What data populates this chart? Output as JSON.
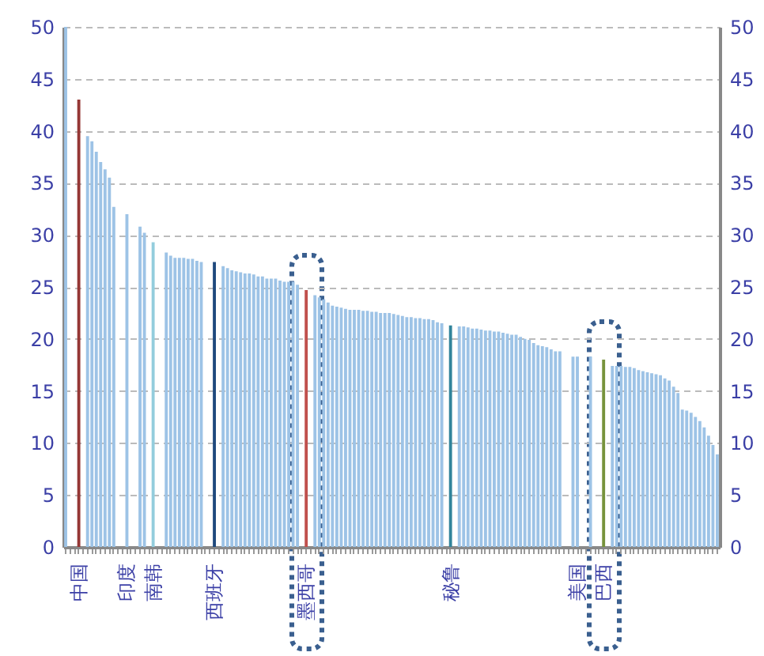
{
  "chart_data": {
    "type": "bar",
    "categories": [
      null,
      null,
      null,
      "中国",
      null,
      null,
      null,
      null,
      null,
      null,
      null,
      null,
      null,
      null,
      "印度",
      null,
      null,
      null,
      null,
      null,
      "南韩",
      null,
      null,
      null,
      null,
      null,
      null,
      null,
      null,
      null,
      null,
      null,
      null,
      null,
      "西班牙",
      null,
      null,
      null,
      null,
      null,
      null,
      null,
      null,
      null,
      null,
      null,
      null,
      null,
      null,
      null,
      null,
      null,
      null,
      null,
      null,
      "墨西哥",
      null,
      null,
      null,
      null,
      null,
      null,
      null,
      null,
      null,
      null,
      null,
      null,
      null,
      null,
      null,
      null,
      null,
      null,
      null,
      null,
      null,
      null,
      null,
      null,
      null,
      null,
      null,
      null,
      null,
      null,
      null,
      null,
      "秘鲁",
      null,
      null,
      null,
      null,
      null,
      null,
      null,
      null,
      null,
      null,
      null,
      null,
      null,
      null,
      null,
      null,
      null,
      null,
      null,
      null,
      null,
      null,
      null,
      null,
      null,
      null,
      null,
      null,
      "美国",
      null,
      null,
      null,
      null,
      null,
      "巴西",
      null,
      null,
      null,
      null,
      null,
      null,
      null,
      null,
      null,
      null,
      null,
      null,
      null,
      null,
      null,
      null,
      null,
      null,
      null,
      null,
      null,
      null,
      null,
      null,
      null,
      null
    ],
    "values": [
      50,
      null,
      null,
      43,
      null,
      39.5,
      39,
      38,
      37,
      36.3,
      35.5,
      32.7,
      null,
      null,
      32,
      null,
      null,
      30.8,
      30.2,
      null,
      29.3,
      null,
      null,
      28.3,
      28.0,
      27.8,
      27.8,
      27.8,
      27.7,
      27.7,
      27.5,
      27.4,
      null,
      null,
      27.4,
      null,
      27.0,
      26.8,
      26.6,
      26.5,
      26.4,
      26.3,
      26.3,
      26.2,
      26.0,
      26.0,
      25.8,
      25.8,
      25.8,
      25.6,
      25.5,
      25.5,
      25.5,
      25.2,
      null,
      24.7,
      null,
      24.2,
      24.0,
      23.8,
      23.5,
      23.2,
      23.1,
      23.0,
      22.9,
      22.8,
      22.8,
      22.8,
      22.7,
      22.7,
      22.6,
      22.6,
      22.5,
      22.5,
      22.5,
      22.4,
      22.3,
      22.2,
      22.1,
      22.1,
      22.0,
      22.0,
      21.9,
      21.9,
      21.8,
      21.6,
      21.5,
      null,
      21.3,
      null,
      21.2,
      21.2,
      21.1,
      21.0,
      21.0,
      20.9,
      20.8,
      20.8,
      20.7,
      20.7,
      20.6,
      20.5,
      20.4,
      20.4,
      20.2,
      20.0,
      19.9,
      19.6,
      19.4,
      19.3,
      19.2,
      19.0,
      18.8,
      18.8,
      null,
      null,
      18.3,
      18.3,
      null,
      null,
      18.3,
      null,
      null,
      18.0,
      null,
      17.4,
      17.4,
      17.4,
      17.3,
      17.3,
      17.2,
      17.0,
      16.9,
      16.8,
      16.7,
      16.6,
      16.5,
      16.2,
      16.0,
      15.4,
      14.8,
      13.2,
      13.1,
      12.9,
      12.5,
      12.1,
      11.5,
      10.7,
      9.8,
      8.9
    ],
    "colors": [
      "#9dc3e6",
      "#9dc3e6",
      "#9dc3e6",
      "#953735",
      "#9dc3e6",
      "#9dc3e6",
      "#9dc3e6",
      "#9dc3e6",
      "#9dc3e6",
      "#9dc3e6",
      "#9dc3e6",
      "#9dc3e6",
      "#9dc3e6",
      "#9dc3e6",
      "#9dc3e6",
      "#9dc3e6",
      "#9dc3e6",
      "#9dc3e6",
      "#9dc3e6",
      "#9dc3e6",
      "#93cddd",
      "#9dc3e6",
      "#9dc3e6",
      "#9dc3e6",
      "#9dc3e6",
      "#9dc3e6",
      "#9dc3e6",
      "#9dc3e6",
      "#9dc3e6",
      "#9dc3e6",
      "#9dc3e6",
      "#9dc3e6",
      "#9dc3e6",
      "#9dc3e6",
      "#1f497d",
      "#9dc3e6",
      "#9dc3e6",
      "#9dc3e6",
      "#9dc3e6",
      "#9dc3e6",
      "#9dc3e6",
      "#9dc3e6",
      "#9dc3e6",
      "#9dc3e6",
      "#9dc3e6",
      "#9dc3e6",
      "#9dc3e6",
      "#9dc3e6",
      "#9dc3e6",
      "#9dc3e6",
      "#9dc3e6",
      "#9dc3e6",
      "#9dc3e6",
      "#9dc3e6",
      "#9dc3e6",
      "#c0504d",
      "#9dc3e6",
      "#9dc3e6",
      "#9dc3e6",
      "#9dc3e6",
      "#9dc3e6",
      "#9dc3e6",
      "#9dc3e6",
      "#9dc3e6",
      "#9dc3e6",
      "#9dc3e6",
      "#9dc3e6",
      "#9dc3e6",
      "#9dc3e6",
      "#9dc3e6",
      "#9dc3e6",
      "#9dc3e6",
      "#9dc3e6",
      "#9dc3e6",
      "#9dc3e6",
      "#9dc3e6",
      "#9dc3e6",
      "#9dc3e6",
      "#9dc3e6",
      "#9dc3e6",
      "#9dc3e6",
      "#9dc3e6",
      "#9dc3e6",
      "#9dc3e6",
      "#9dc3e6",
      "#9dc3e6",
      "#9dc3e6",
      "#9dc3e6",
      "#31849b",
      "#9dc3e6",
      "#9dc3e6",
      "#9dc3e6",
      "#9dc3e6",
      "#9dc3e6",
      "#9dc3e6",
      "#9dc3e6",
      "#9dc3e6",
      "#9dc3e6",
      "#9dc3e6",
      "#9dc3e6",
      "#9dc3e6",
      "#9dc3e6",
      "#9dc3e6",
      "#9dc3e6",
      "#9dc3e6",
      "#9dc3e6",
      "#9dc3e6",
      "#9dc3e6",
      "#9dc3e6",
      "#9dc3e6",
      "#9dc3e6",
      "#9dc3e6",
      "#9dc3e6",
      "#9dc3e6",
      "#9dc3e6",
      "#9dc3e6",
      "#9dc3e6",
      "#9dc3e6",
      "#9dc3e6",
      "#9dc3e6",
      "#9dc3e6",
      "#9dc3e6",
      "#9dc3e6",
      "#77933c",
      "#9dc3e6",
      "#9dc3e6",
      "#9dc3e6",
      "#9dc3e6",
      "#9dc3e6",
      "#9dc3e6",
      "#9dc3e6",
      "#9dc3e6",
      "#9dc3e6",
      "#9dc3e6",
      "#9dc3e6",
      "#9dc3e6",
      "#9dc3e6",
      "#9dc3e6",
      "#9dc3e6",
      "#9dc3e6",
      "#9dc3e6",
      "#9dc3e6",
      "#9dc3e6",
      "#9dc3e6",
      "#9dc3e6",
      "#9dc3e6",
      "#9dc3e6",
      "#9dc3e6",
      "#9dc3e6",
      "#9dc3e6"
    ],
    "ylim": [
      0,
      50
    ],
    "yticks": [
      0,
      5,
      10,
      15,
      20,
      25,
      30,
      35,
      40,
      45,
      50
    ],
    "y2lim": [
      0,
      50
    ],
    "y2ticks": [
      0,
      5,
      10,
      15,
      20,
      25,
      30,
      35,
      40,
      45,
      50
    ],
    "grid": "y"
  }
}
